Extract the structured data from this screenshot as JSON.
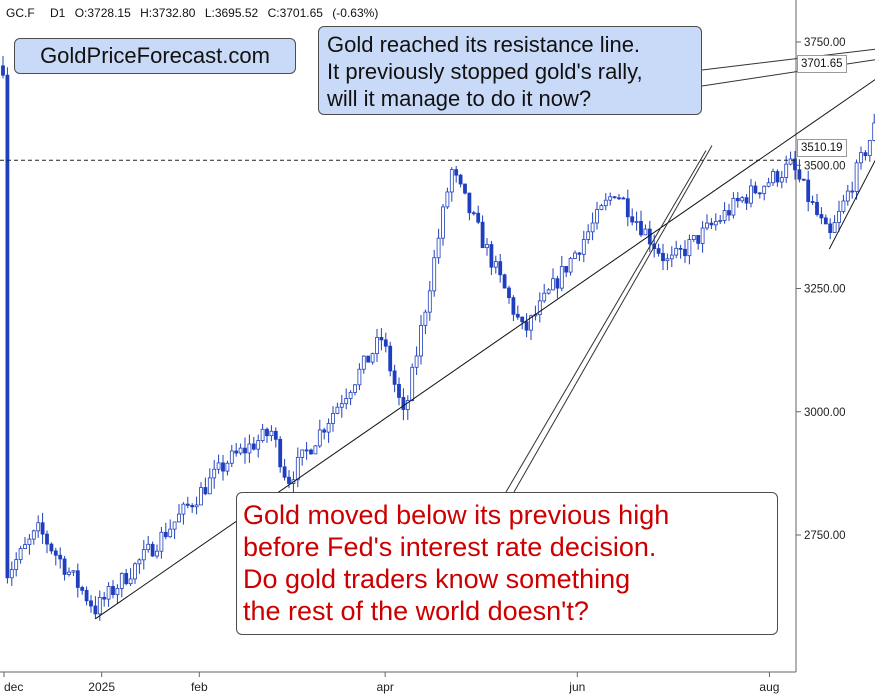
{
  "header": {
    "symbol": "GC.F",
    "interval": "D1",
    "open": "O:3728.15",
    "high": "H:3732.80",
    "low": "L:3695.52",
    "close": "C:3701.65",
    "change": "(-0.63%)"
  },
  "brand": "GoldPriceForecast.com",
  "annotation_top": [
    "Gold reached its resistance line.",
    "It previously stopped gold's rally,",
    "will it manage to do it now?"
  ],
  "annotation_bottom": [
    "Gold moved below its previous high",
    "before Fed's interest rate decision.",
    "Do gold traders know something",
    "the rest of the world doesn't?"
  ],
  "price_labels": {
    "last": "3701.65",
    "level": "3510.19"
  },
  "colors": {
    "candle": "#1f3fbf",
    "callout_fill": "#c9daf8",
    "red_text": "#cc0000"
  },
  "chart_data": {
    "type": "candlestick",
    "title": "",
    "y_ticks": [
      "3750.00",
      "3500.00",
      "3250.00",
      "3000.00",
      "2750.00"
    ],
    "y_tick_values": [
      3750,
      3500,
      3250,
      3000,
      2750
    ],
    "ylim": [
      2530,
      3810
    ],
    "x_ticks": [
      "dec",
      "2025",
      "feb",
      "apr",
      "jun",
      "aug"
    ],
    "horizontal_level": 3510.19,
    "last_price": 3701.65,
    "series": [
      {
        "name": "GC.F D1",
        "key_points": [
          [
            "2024-12-01",
            2665
          ],
          [
            "2024-12-12",
            2760
          ],
          [
            "2024-12-30",
            2600
          ],
          [
            "2025-01-15",
            2710
          ],
          [
            "2025-02-10",
            2900
          ],
          [
            "2025-02-24",
            2960
          ],
          [
            "2025-03-01",
            2860
          ],
          [
            "2025-03-31",
            3150
          ],
          [
            "2025-04-07",
            2985
          ],
          [
            "2025-04-22",
            3490
          ],
          [
            "2025-05-15",
            3160
          ],
          [
            "2025-06-13",
            3450
          ],
          [
            "2025-06-30",
            3300
          ],
          [
            "2025-07-23",
            3430
          ],
          [
            "2025-08-08",
            3500
          ],
          [
            "2025-08-20",
            3350
          ],
          [
            "2025-09-08",
            3650
          ],
          [
            "2025-09-16",
            3730
          ],
          [
            "2025-09-19",
            3701.65
          ]
        ]
      }
    ],
    "trendlines": [
      {
        "from": [
          "2024-12-30",
          2580
        ],
        "to": [
          "2025-09-19",
          3742
        ]
      },
      {
        "from": [
          "2025-08-20",
          3330
        ],
        "to": [
          "2025-09-19",
          3700
        ]
      }
    ]
  }
}
